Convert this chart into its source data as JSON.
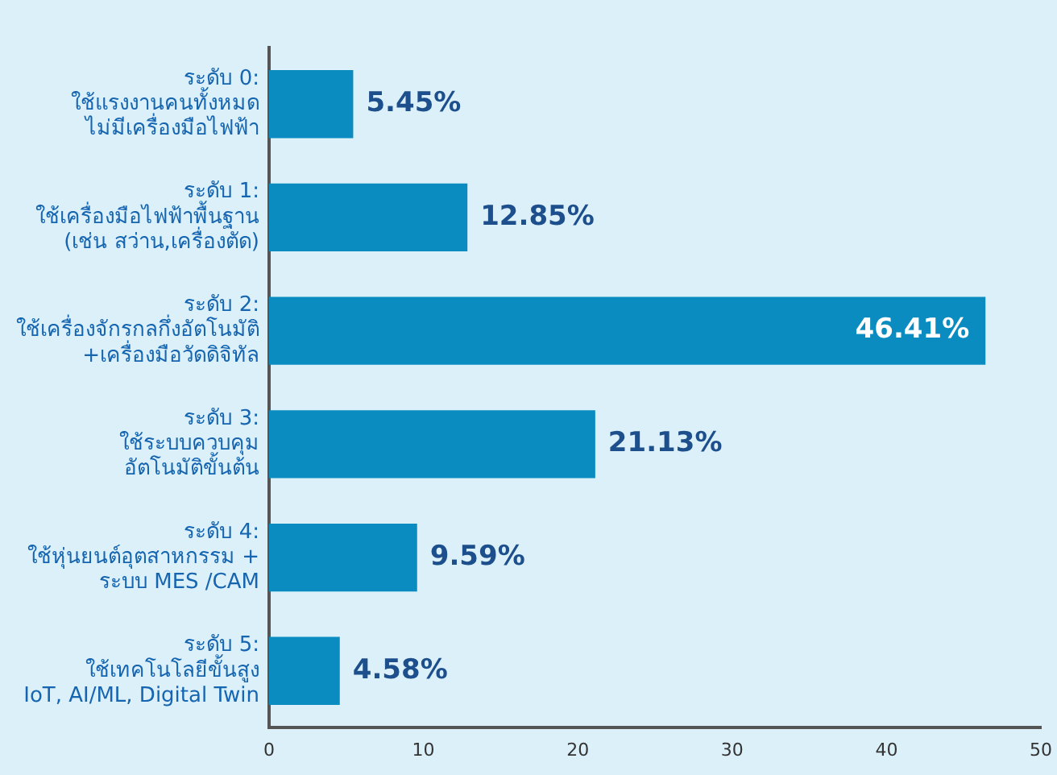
{
  "chart_data": {
    "type": "bar",
    "orientation": "horizontal",
    "categories": [
      "ระดับ 0:\nใช้แรงงานคนทั้งหมด\nไม่มีเครื่องมือไฟฟ้า",
      "ระดับ 1:\nใช้เครื่องมือไฟฟ้าพื้นฐาน\n(เช่น สว่าน,เครื่องตัด)",
      "ระดับ 2:\nใช้เครื่องจักรกลกึ่งอัตโนมัติ\n+เครื่องมือวัดดิจิทัล",
      "ระดับ 3:\nใช้ระบบควบคุม\nอัตโนมัติขั้นต้น",
      "ระดับ 4:\nใช้หุ่นยนต์อุตสาหกรรม +\nระบบ MES /CAM",
      "ระดับ 5:\nใช้เทคโนโลยีขั้นสูง\nIoT, AI/ML, Digital Twin"
    ],
    "values": [
      5.45,
      12.85,
      46.41,
      21.13,
      9.59,
      4.58
    ],
    "value_labels": [
      "5.45%",
      "12.85%",
      "46.41%",
      "21.13%",
      "9.59%",
      "4.58%"
    ],
    "color": "#0a8cc0",
    "xlim": [
      0,
      50
    ],
    "xticks": [
      0,
      10,
      20,
      30,
      40,
      50
    ],
    "grid": false,
    "legend": false
  }
}
